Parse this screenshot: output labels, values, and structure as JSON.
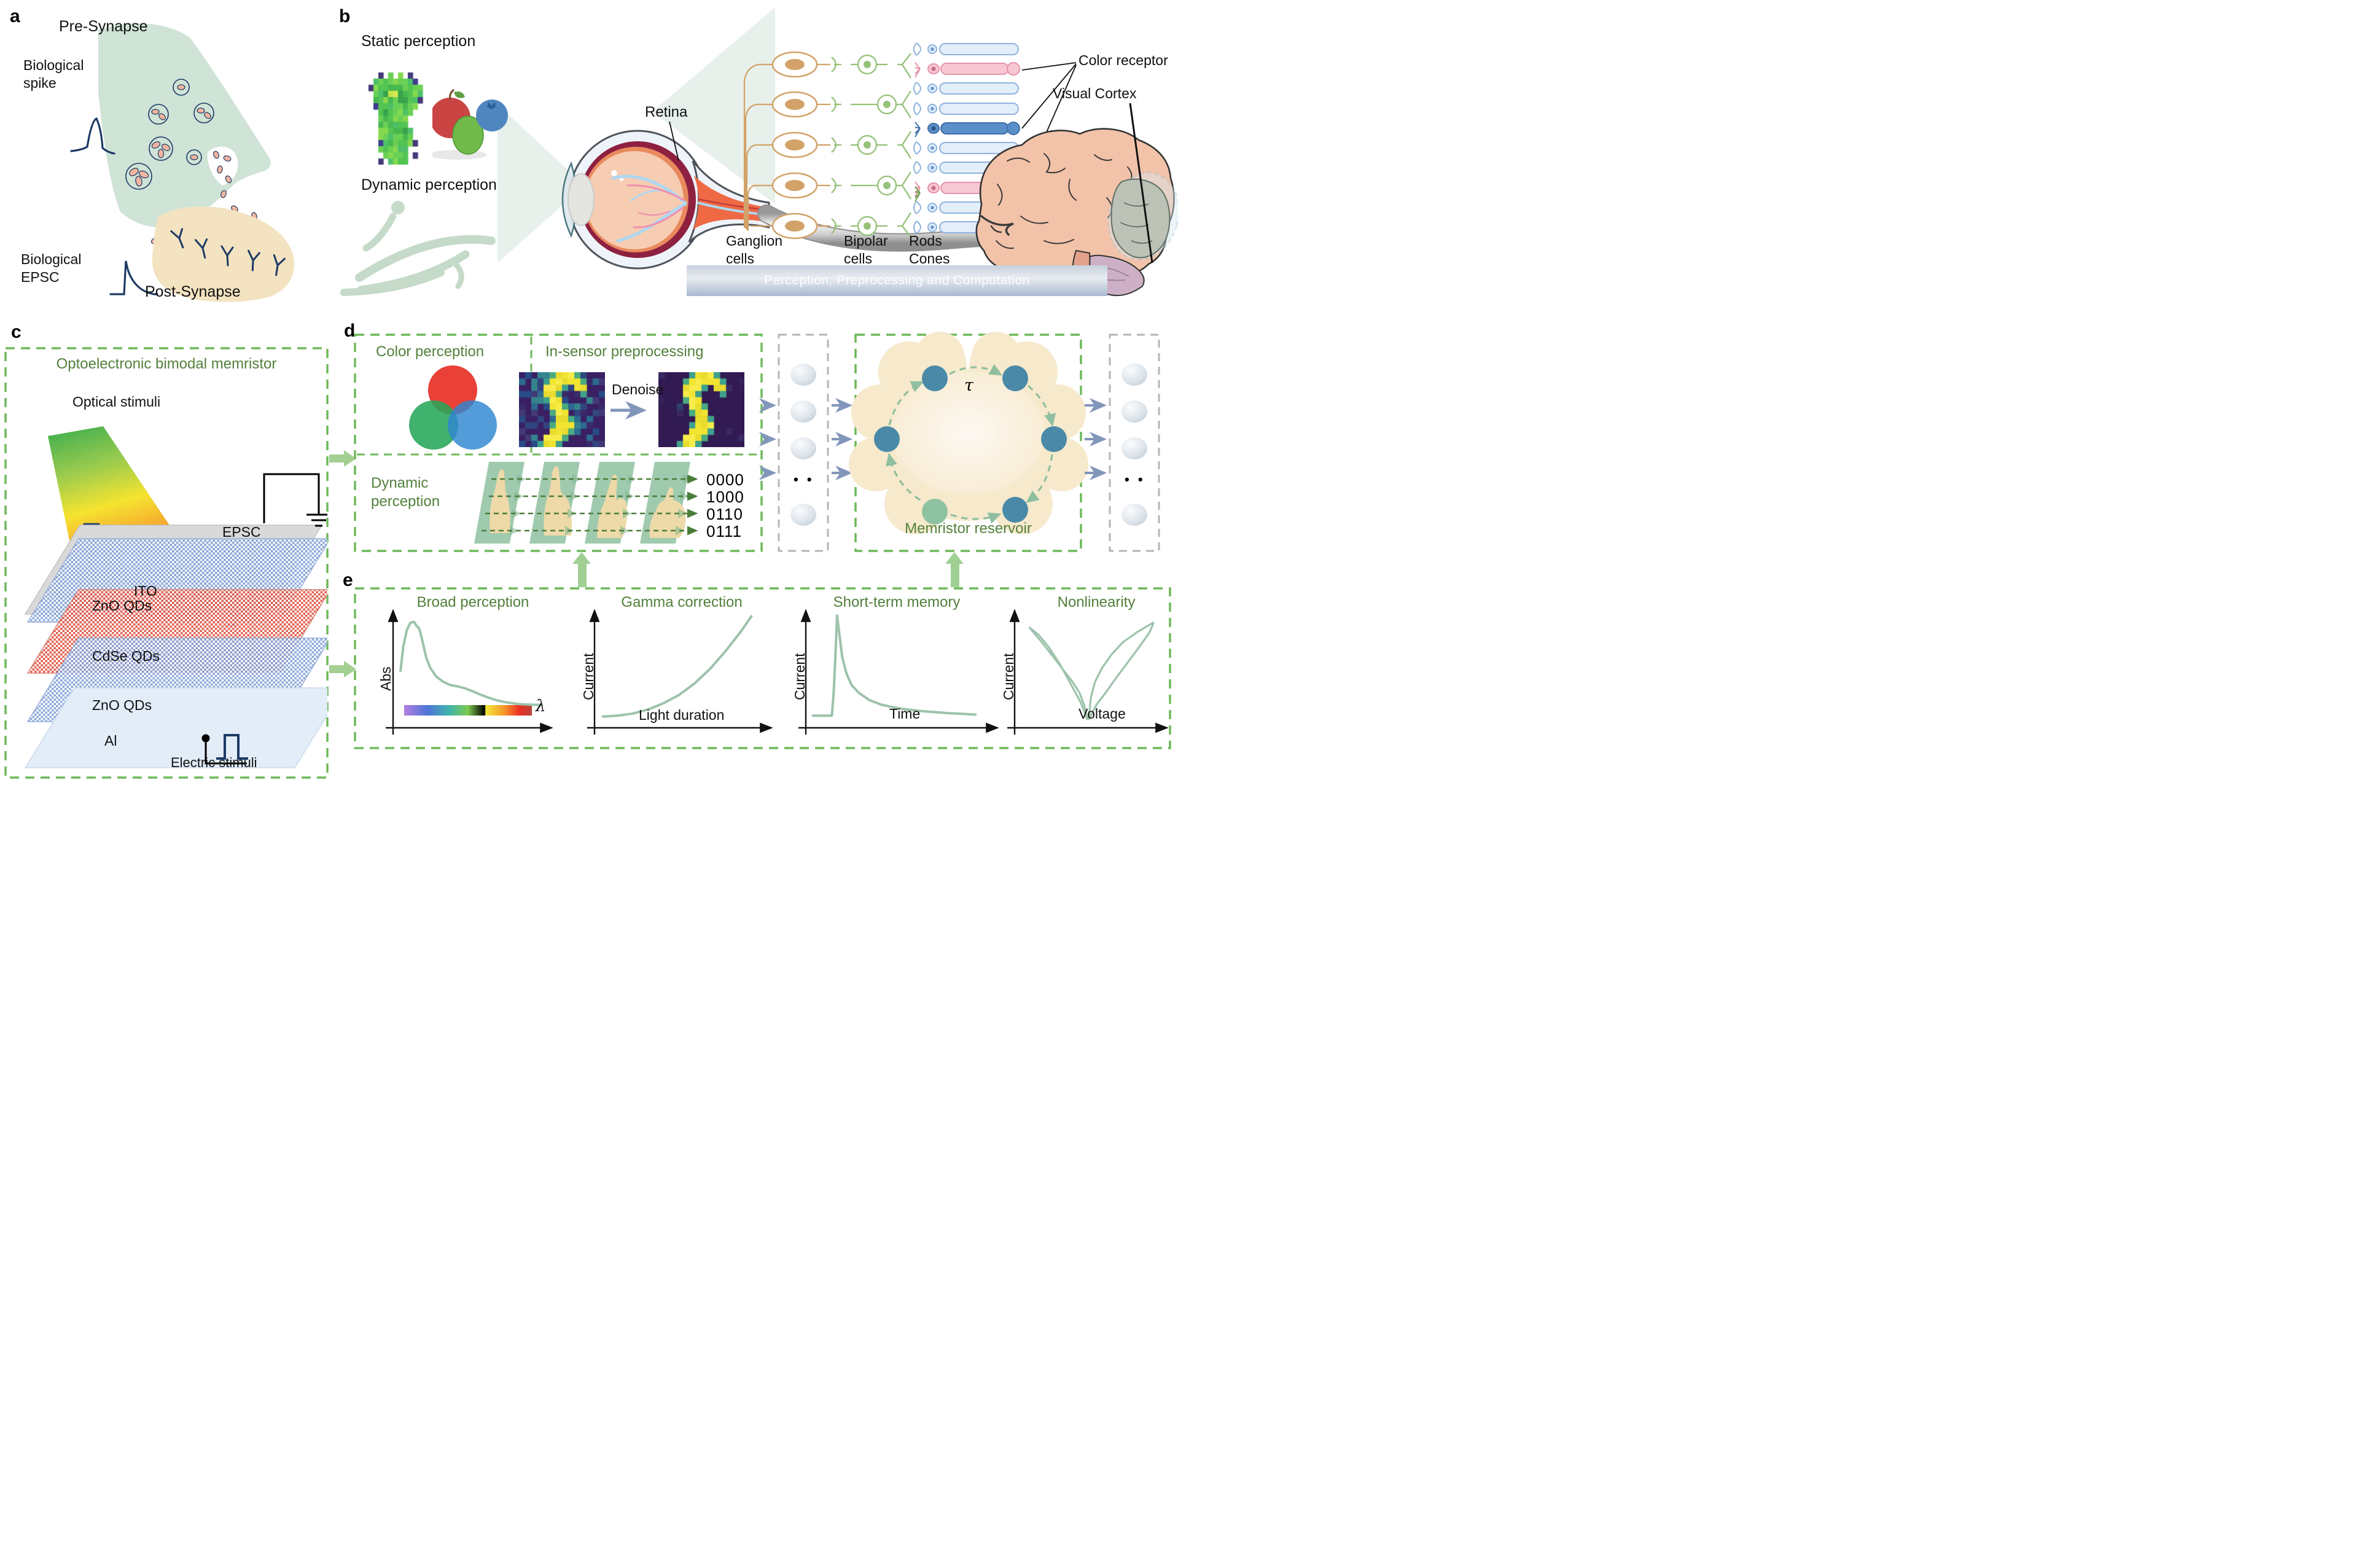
{
  "panel_a": {
    "letter": "a",
    "pre_synapse": "Pre-Synapse",
    "biological_spike": "Biological spike",
    "biological_epsc": "Biological EPSC",
    "post_synapse": "Post-Synapse"
  },
  "panel_b": {
    "letter": "b",
    "static_perception": "Static perception",
    "dynamic_perception": "Dynamic perception",
    "retina": "Retina",
    "ganglion_cells": "Ganglion cells",
    "bipolar_cells": "Bipolar cells",
    "rods_cones": "Rods Cones",
    "color_receptor": "Color receptor",
    "visual_cortex": "Visual Cortex",
    "banner": "Perception, Preprocessing and Computation"
  },
  "panel_c": {
    "letter": "c",
    "title": "Optoelectronic bimodal memristor",
    "optical_stimuli": "Optical stimuli",
    "epsc": "EPSC",
    "layers": [
      "ITO",
      "ZnO QDs",
      "CdSe QDs",
      "ZnO QDs",
      "Al"
    ],
    "electric_stimuli": "Electric stimuli"
  },
  "panel_d": {
    "letter": "d",
    "color_perception": "Color perception",
    "in_sensor": "In-sensor preprocessing",
    "denoise": "Denoise",
    "dynamic_perception": "Dynamic perception",
    "binary_codes": [
      "0000",
      "1000",
      "0110",
      "0111"
    ],
    "tau": "τ",
    "memristor_reservoir": "Memristor reservoir",
    "dots": "• •"
  },
  "panel_e": {
    "letter": "e"
  },
  "chart_data": [
    {
      "type": "line",
      "title": "Broad perception",
      "xlabel": "λ",
      "ylabel": "Abs",
      "points": [
        [
          0.0,
          0.42
        ],
        [
          0.02,
          0.7
        ],
        [
          0.045,
          0.88
        ],
        [
          0.07,
          0.96
        ],
        [
          0.095,
          0.97
        ],
        [
          0.115,
          0.92
        ],
        [
          0.13,
          0.9
        ],
        [
          0.14,
          0.85
        ],
        [
          0.16,
          0.72
        ],
        [
          0.18,
          0.58
        ],
        [
          0.21,
          0.46
        ],
        [
          0.25,
          0.37
        ],
        [
          0.3,
          0.31
        ],
        [
          0.35,
          0.275
        ],
        [
          0.4,
          0.26
        ],
        [
          0.45,
          0.24
        ],
        [
          0.5,
          0.21
        ],
        [
          0.56,
          0.17
        ],
        [
          0.62,
          0.135
        ],
        [
          0.68,
          0.105
        ],
        [
          0.75,
          0.082
        ],
        [
          0.83,
          0.065
        ],
        [
          0.92,
          0.058
        ],
        [
          1.0,
          0.055
        ]
      ]
    },
    {
      "type": "line",
      "title": "Gamma correction",
      "xlabel": "Light duration",
      "ylabel": "Current",
      "points": [
        [
          0.0,
          0.03
        ],
        [
          0.1,
          0.04
        ],
        [
          0.2,
          0.06
        ],
        [
          0.3,
          0.1
        ],
        [
          0.4,
          0.16
        ],
        [
          0.5,
          0.24
        ],
        [
          0.6,
          0.35
        ],
        [
          0.7,
          0.49
        ],
        [
          0.8,
          0.66
        ],
        [
          0.9,
          0.85
        ],
        [
          0.97,
          1.0
        ]
      ]
    },
    {
      "type": "line",
      "title": "Short-term memory",
      "xlabel": "Time",
      "ylabel": "Current",
      "points": [
        [
          0.0,
          0.04
        ],
        [
          0.115,
          0.04
        ],
        [
          0.125,
          0.25
        ],
        [
          0.135,
          0.6
        ],
        [
          0.145,
          1.0
        ],
        [
          0.16,
          0.8
        ],
        [
          0.175,
          0.6
        ],
        [
          0.2,
          0.44
        ],
        [
          0.23,
          0.33
        ],
        [
          0.27,
          0.26
        ],
        [
          0.33,
          0.19
        ],
        [
          0.4,
          0.145
        ],
        [
          0.5,
          0.11
        ],
        [
          0.62,
          0.085
        ],
        [
          0.78,
          0.065
        ],
        [
          0.95,
          0.05
        ]
      ]
    },
    {
      "type": "line",
      "title": "Nonlinearity",
      "xlabel": "Voltage",
      "ylabel": "Current",
      "curves": [
        [
          [
            0.06,
            0.93
          ],
          [
            0.13,
            0.85
          ],
          [
            0.2,
            0.73
          ],
          [
            0.27,
            0.58
          ],
          [
            0.33,
            0.43
          ],
          [
            0.38,
            0.3
          ],
          [
            0.43,
            0.17
          ],
          [
            0.46,
            0.06
          ],
          [
            0.475,
            0.0
          ]
        ],
        [
          [
            0.06,
            0.93
          ],
          [
            0.15,
            0.78
          ],
          [
            0.24,
            0.62
          ],
          [
            0.31,
            0.49
          ],
          [
            0.37,
            0.38
          ],
          [
            0.42,
            0.27
          ],
          [
            0.455,
            0.14
          ],
          [
            0.475,
            0.0
          ]
        ],
        [
          [
            0.485,
            0.0
          ],
          [
            0.5,
            0.22
          ],
          [
            0.53,
            0.38
          ],
          [
            0.58,
            0.52
          ],
          [
            0.65,
            0.66
          ],
          [
            0.73,
            0.78
          ],
          [
            0.83,
            0.88
          ],
          [
            0.95,
            0.98
          ]
        ],
        [
          [
            0.485,
            0.0
          ],
          [
            0.54,
            0.15
          ],
          [
            0.61,
            0.28
          ],
          [
            0.68,
            0.42
          ],
          [
            0.76,
            0.57
          ],
          [
            0.85,
            0.74
          ],
          [
            0.92,
            0.88
          ],
          [
            0.95,
            0.98
          ]
        ]
      ]
    }
  ],
  "images": {
    "tshirt": {
      "rows": [
        "..d.g.g.d....",
        ".ggggggggd...",
        "dgggggggggg..",
        ".ggGyyGgggg..",
        ".gggggGGggd..",
        ".dgggggggg...",
        "..gGggggg....",
        "..gggggg.....",
        "..gggggg.....",
        "..gggggGg....",
        "..ggggggg....",
        "..dggggggd...",
        "..gggggg.....",
        "...ggggg.d...",
        "..d.gggg....."
      ],
      "seed": 11,
      "palette": {
        "g": [
          "#53c452",
          "#47b84e",
          "#6ad055",
          "#84d94e",
          "#4fc06a"
        ],
        "G": [
          "#3fae52",
          "#37a34b"
        ],
        "y": [
          "#d9e94f",
          "#c6e34c"
        ],
        "d": [
          "#3f3f8f",
          "#443a7a"
        ]
      }
    },
    "digit": {
      "rows": [
        ".....tyyyt....",
        "....tyyyyyt...",
        "....yyyt.yy...",
        "....yyt...t...",
        "....tyy.......",
        ".....yyt......",
        ".....tyy......",
        "......yyt.....",
        ".....tyyy.....",
        ".....yyyt.....",
        "....yyyt......",
        "...tyyt......."
      ],
      "palette": {
        "y": [
          "#f2e430",
          "#e8dc2e",
          "#f7ec4a"
        ],
        "t": [
          "#3fa08c",
          "#4aab7f"
        ]
      },
      "noisy": {
        "seed": 42,
        "bg": "#3a2063",
        "noise": 0.5,
        "noiseColors": [
          "#433a75",
          "#31457f",
          "#2c6a8f",
          "#35848d",
          "#3b2a6b",
          "#284b86"
        ]
      },
      "clean": {
        "seed": 7,
        "bg": "#321a52",
        "noise": 0.09,
        "noiseColors": [
          "#3a2a63",
          "#2e3f72",
          "#362257"
        ]
      }
    }
  },
  "colors": {
    "dash_green": "#6eb95b",
    "heading_green": "#52803b",
    "sage_curve": "#9dc3ab",
    "navy": "#1d3a66",
    "arrow_blue": "#8296bb",
    "teal_node": "#4a8aa8",
    "green_node": "#8ec2a0",
    "reservoir_tan": "#f7e9cc",
    "presynapse_green": "#cfe3d6",
    "postsynapse_tan": "#f3e3c0",
    "vesicle_pink": "#f2b5a0",
    "frame_green": "#9fcaae",
    "hand_tan": "#eed9a8",
    "zno_blue": "#7f9ed6",
    "cdse_red": "#e0503f",
    "ito_gray": "#d9d9d9",
    "al_blue": "#e2edf8"
  }
}
